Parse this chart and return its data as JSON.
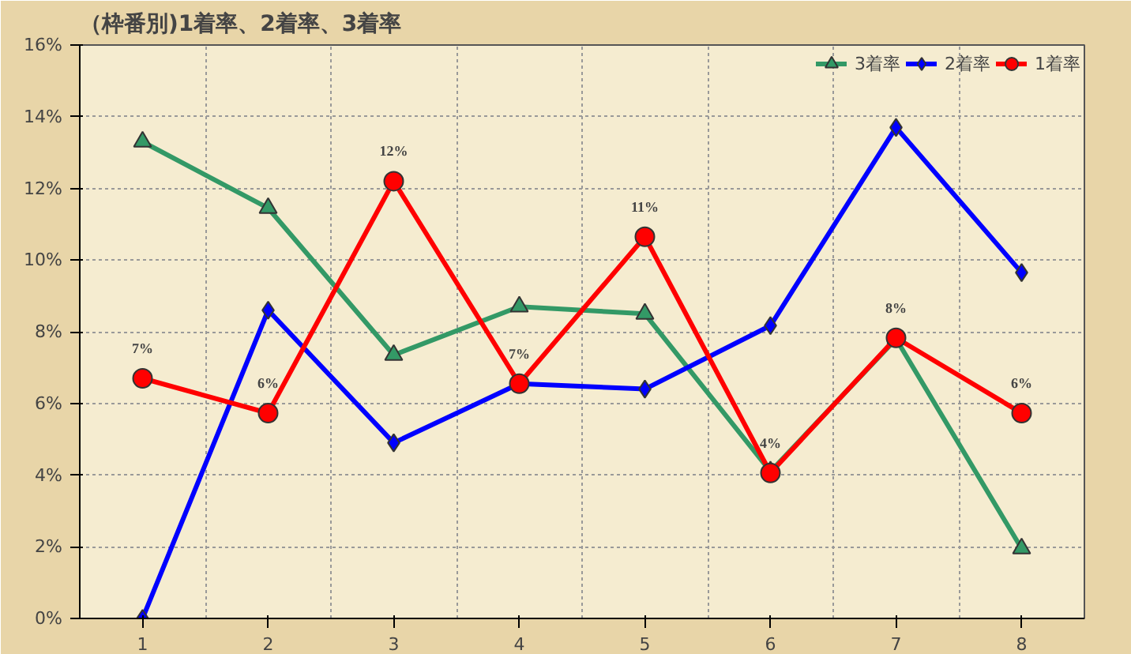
{
  "chart_data": {
    "type": "line",
    "title": "（枠番別)1着率、2着率、3着率",
    "categories": [
      "1",
      "2",
      "3",
      "4",
      "5",
      "6",
      "7",
      "8"
    ],
    "series": [
      {
        "name": "3着率",
        "color": "#339966",
        "marker": "triangle",
        "values": [
          13.3,
          11.45,
          7.35,
          8.7,
          8.5,
          4.1,
          7.8,
          1.95
        ]
      },
      {
        "name": "2着率",
        "color": "#0000ff",
        "marker": "diamond",
        "values": [
          0,
          8.6,
          4.9,
          6.55,
          6.4,
          8.17,
          13.7,
          9.65
        ]
      },
      {
        "name": "1着率",
        "color": "#ff0000",
        "marker": "circle",
        "values": [
          6.7,
          5.73,
          12.2,
          6.55,
          10.65,
          4.06,
          7.83,
          5.73
        ],
        "value_labels": [
          "7%",
          "6%",
          "12%",
          "7%",
          "11%",
          "4%",
          "8%",
          "6%"
        ]
      }
    ],
    "ylim": [
      0,
      16
    ],
    "yticks": [
      {
        "value": 0,
        "label": "0%"
      },
      {
        "value": 2,
        "label": "2%"
      },
      {
        "value": 4,
        "label": "4%"
      },
      {
        "value": 6,
        "label": "6%"
      },
      {
        "value": 8,
        "label": "8%"
      },
      {
        "value": 10,
        "label": "10%"
      },
      {
        "value": 12,
        "label": "12%"
      },
      {
        "value": 14,
        "label": "14%"
      },
      {
        "value": 16,
        "label": "16%"
      }
    ],
    "grid": true,
    "legend": "top right",
    "line_style": "solid"
  }
}
